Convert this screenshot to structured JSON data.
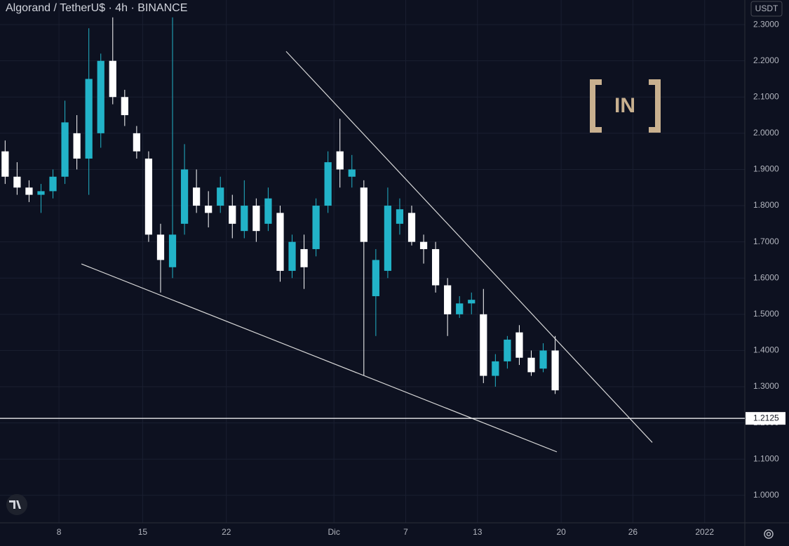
{
  "chart_data": {
    "type": "candlestick",
    "title": "Algorand / TetherU$ · 4h · BINANCE",
    "currency": "USDT",
    "logo": "IN",
    "up_color": "#22b3c8",
    "down_color": "#ffffff",
    "x": [
      3.5,
      4.5,
      5.5,
      6.5,
      7.5,
      8.5,
      9.5,
      10.5,
      11.5,
      12.5,
      13.5,
      14.5,
      15.5,
      16.5,
      17.5,
      18.5,
      19.5,
      20.5,
      21.5,
      22.5,
      23.5,
      24.5,
      25.5,
      26.5,
      27.5,
      28.5,
      29.5,
      30.5,
      31.5,
      32.5,
      33.5,
      34.5,
      35.5,
      36.5,
      37.5,
      38.5,
      39.5,
      40.5,
      41.5,
      42.5,
      43.5,
      44.5,
      45.5,
      46.5,
      47.5,
      48.5,
      49.5
    ],
    "open": [
      1.95,
      1.88,
      1.85,
      1.83,
      1.84,
      1.88,
      2.0,
      1.93,
      2.0,
      2.2,
      2.1,
      2.0,
      1.93,
      1.72,
      1.63,
      1.75,
      1.85,
      1.8,
      1.8,
      1.8,
      1.73,
      1.8,
      1.75,
      1.78,
      1.62,
      1.68,
      1.68,
      1.8,
      1.95,
      1.88,
      1.85,
      1.55,
      1.62,
      1.75,
      1.78,
      1.7,
      1.68,
      1.58,
      1.5,
      1.53,
      1.5,
      1.33,
      1.37,
      1.45,
      1.38,
      1.35,
      1.4
    ],
    "high": [
      1.98,
      1.92,
      1.87,
      1.86,
      1.9,
      2.09,
      2.05,
      2.29,
      2.22,
      2.32,
      2.12,
      2.02,
      1.95,
      1.75,
      2.32,
      1.97,
      1.9,
      1.84,
      1.88,
      1.83,
      1.87,
      1.82,
      1.85,
      1.8,
      1.72,
      1.72,
      1.82,
      1.95,
      2.04,
      1.94,
      1.87,
      1.68,
      1.85,
      1.82,
      1.8,
      1.72,
      1.7,
      1.6,
      1.55,
      1.56,
      1.57,
      1.39,
      1.44,
      1.47,
      1.4,
      1.42,
      1.44
    ],
    "low": [
      1.86,
      1.83,
      1.81,
      1.78,
      1.82,
      1.86,
      1.9,
      1.83,
      1.96,
      2.08,
      2.02,
      1.93,
      1.7,
      1.56,
      1.6,
      1.72,
      1.78,
      1.74,
      1.78,
      1.71,
      1.71,
      1.7,
      1.73,
      1.59,
      1.6,
      1.57,
      1.66,
      1.78,
      1.85,
      1.85,
      1.33,
      1.44,
      1.6,
      1.72,
      1.69,
      1.64,
      1.56,
      1.44,
      1.49,
      1.5,
      1.31,
      1.3,
      1.35,
      1.36,
      1.33,
      1.34,
      1.28
    ],
    "close": [
      1.88,
      1.85,
      1.83,
      1.84,
      1.88,
      2.03,
      1.93,
      2.15,
      2.2,
      2.1,
      2.05,
      1.95,
      1.72,
      1.65,
      1.72,
      1.9,
      1.8,
      1.78,
      1.85,
      1.75,
      1.8,
      1.73,
      1.82,
      1.62,
      1.7,
      1.63,
      1.8,
      1.92,
      1.9,
      1.9,
      1.7,
      1.65,
      1.8,
      1.79,
      1.7,
      1.68,
      1.58,
      1.5,
      1.53,
      1.54,
      1.33,
      1.37,
      1.43,
      1.38,
      1.34,
      1.4,
      1.29
    ],
    "xlim": [
      3.07,
      65.36
    ],
    "xticks": [
      8,
      15,
      22,
      {
        "value": 31,
        "label": "Dic"
      },
      {
        "value": 37,
        "label": "7"
      },
      {
        "value": 43,
        "label": "13"
      },
      {
        "value": 50,
        "label": "20"
      },
      {
        "value": 56,
        "label": "26"
      },
      {
        "value": 62,
        "label": "2022"
      }
    ],
    "ylim": [
      0.924,
      2.368
    ],
    "yticks": [
      {
        "value": 1.0,
        "label": "1.0000"
      },
      {
        "value": 1.1,
        "label": "1.1000"
      },
      {
        "value": 1.2,
        "label": "1.2000"
      },
      {
        "value": 1.3,
        "label": "1.3000"
      },
      {
        "value": 1.4,
        "label": "1.4000"
      },
      {
        "value": 1.5,
        "label": "1.5000"
      },
      {
        "value": 1.6,
        "label": "1.6000"
      },
      {
        "value": 1.7,
        "label": "1.7000"
      },
      {
        "value": 1.8,
        "label": "1.8000"
      },
      {
        "value": 1.9,
        "label": "1.9000"
      },
      {
        "value": 2.0,
        "label": "2.0000"
      },
      {
        "value": 2.1,
        "label": "2.1000"
      },
      {
        "value": 2.2,
        "label": "2.2000"
      },
      {
        "value": 2.3,
        "label": "2.3000"
      }
    ],
    "grid": true,
    "price_line": {
      "value": 1.2125,
      "label": "1.2125"
    },
    "trendlines": [
      {
        "x": [
          9.88,
          49.64
        ],
        "y": [
          1.639,
          1.12
        ]
      },
      {
        "x": [
          27.0,
          57.62
        ],
        "y": [
          2.226,
          1.146
        ]
      }
    ]
  }
}
